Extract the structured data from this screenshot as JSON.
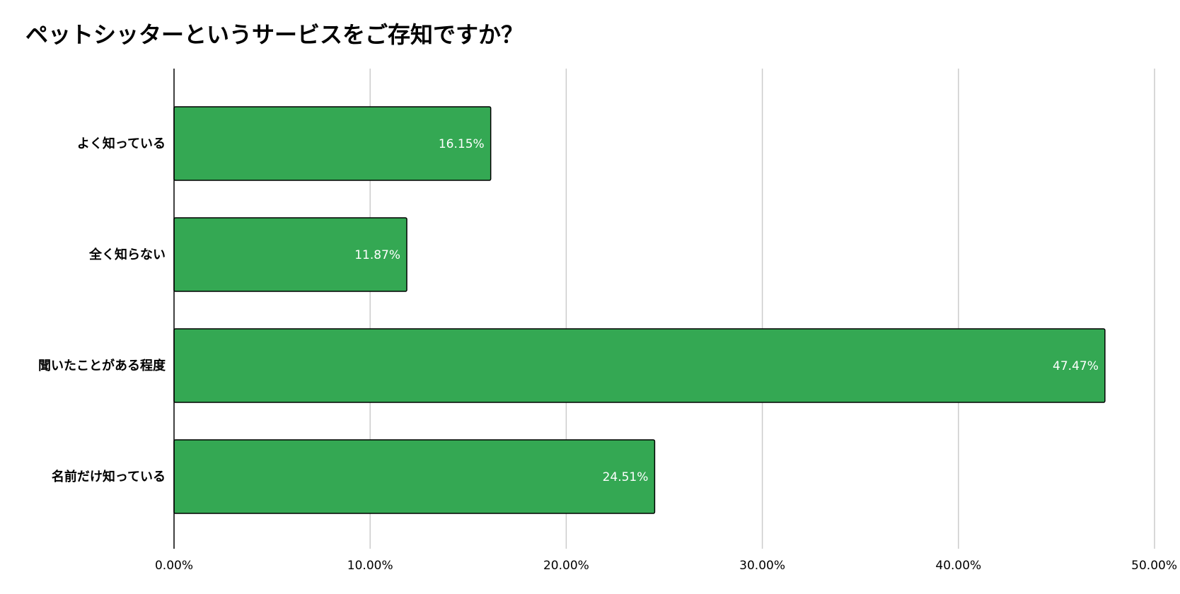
{
  "chart_data": {
    "type": "bar",
    "orientation": "horizontal",
    "title": "ペットシッターというサービスをご存知ですか？",
    "categories": [
      "よく知っている",
      "全く知らない",
      "聞いたことがある程度",
      "名前だけ知っている"
    ],
    "values": [
      16.15,
      11.87,
      47.47,
      24.51
    ],
    "value_labels": [
      "16.15%",
      "11.87%",
      "47.47%",
      "24.51%"
    ],
    "xlim": [
      0,
      50
    ],
    "x_ticks": [
      0,
      10,
      20,
      30,
      40,
      50
    ],
    "x_tick_labels": [
      "0.00%",
      "10.00%",
      "20.00%",
      "30.00%",
      "40.00%",
      "50.00%"
    ],
    "xlabel": "",
    "ylabel": "",
    "grid": true,
    "legend": "none",
    "colors": {
      "bar": "#34a853",
      "bar_outline": "#000000",
      "grid": "#cccccc",
      "axis": "#000000",
      "data_label": "#ffffff"
    }
  }
}
